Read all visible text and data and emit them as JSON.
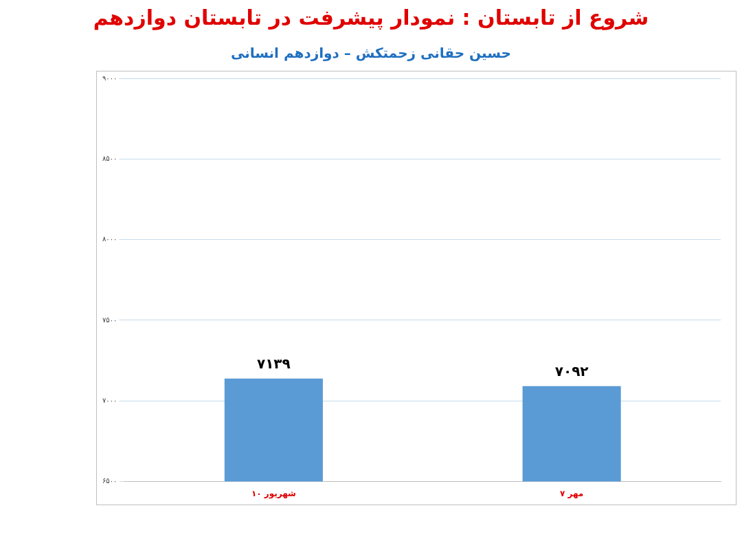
{
  "chart_data": {
    "type": "bar",
    "title": "شروع از تابستان : نمودار پیشرفت در تابستان دوازدهم",
    "subtitle": "حسین حقانی زحمتکش – دوازدهم انسانی",
    "categories": [
      "۱۰ شهریور",
      "۷ مهر"
    ],
    "values": [
      7139,
      7092
    ],
    "value_labels": [
      "۷۱۳۹",
      "۷۰۹۲"
    ],
    "color": "#5b9bd5",
    "ylim": [
      6500,
      9000
    ],
    "yticks": [
      {
        "value": 6500,
        "label": "۶۵۰۰"
      },
      {
        "value": 7000,
        "label": "۷۰۰۰"
      },
      {
        "value": 7500,
        "label": "۷۵۰۰"
      },
      {
        "value": 8000,
        "label": "۸۰۰۰"
      },
      {
        "value": 8500,
        "label": "۸۵۰۰"
      },
      {
        "value": 9000,
        "label": "۹۰۰۰"
      }
    ],
    "grid": "y"
  }
}
